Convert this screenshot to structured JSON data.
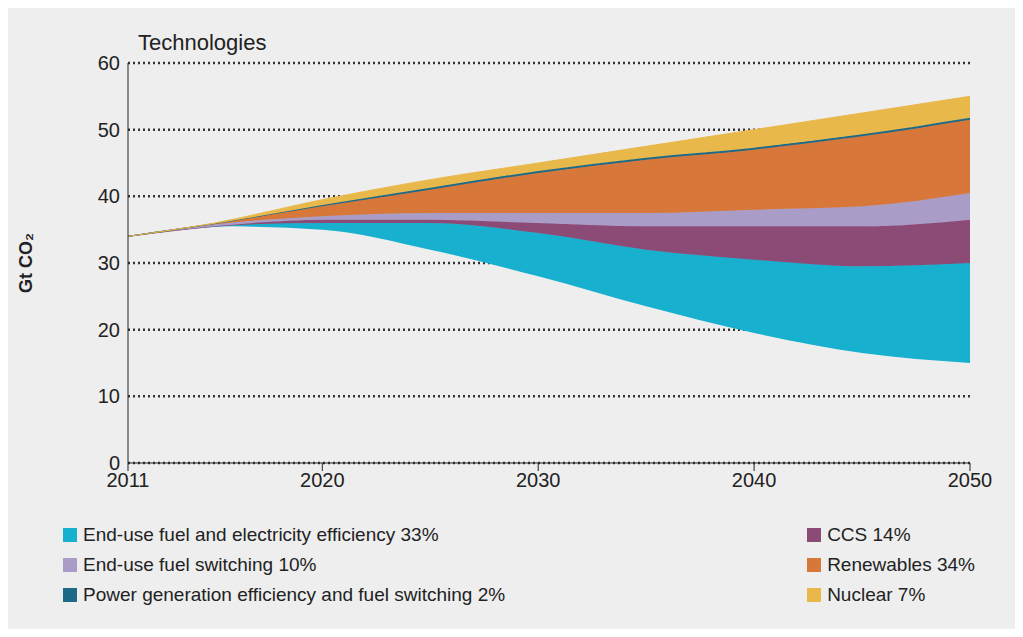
{
  "chart_data": {
    "type": "area",
    "title": "Technologies",
    "y_label": "Gt CO₂",
    "stacked": true,
    "grid": true,
    "legend": "bottom",
    "x": [
      2011,
      2015,
      2020,
      2025,
      2030,
      2035,
      2040,
      2045,
      2050
    ],
    "xlim": [
      2011,
      2050
    ],
    "xticks": [
      2011,
      2020,
      2030,
      2040,
      2050
    ],
    "ylim": [
      0,
      60
    ],
    "yticks": [
      0,
      10,
      20,
      30,
      40,
      50,
      60
    ],
    "baseline": [
      34,
      35.5,
      35,
      32,
      28,
      23.5,
      19.5,
      16.5,
      15
    ],
    "series": [
      {
        "name": "End-use fuel and electricity efficiency 33%",
        "color": "#17b1cf",
        "values": [
          0,
          0,
          1,
          4,
          6.5,
          8.5,
          11,
          13,
          15
        ]
      },
      {
        "name": "CCS 14%",
        "color": "#8c4a76",
        "values": [
          0,
          0,
          0.5,
          0.5,
          1.5,
          3.5,
          5,
          6,
          6.5
        ]
      },
      {
        "name": "End-use fuel switching 10%",
        "color": "#a99dc8",
        "values": [
          0,
          0.3,
          0.5,
          1,
          1.5,
          2,
          2.5,
          3,
          4
        ]
      },
      {
        "name": "Renewables 34%",
        "color": "#d8773a",
        "values": [
          0,
          0.1,
          1.5,
          3.5,
          6,
          8,
          9,
          10.5,
          11
        ]
      },
      {
        "name": "Power generation efficiency and fuel switching 2%",
        "color": "#1d6a86",
        "values": [
          0,
          0,
          0.2,
          0.3,
          0.3,
          0.3,
          0.3,
          0.3,
          0.3
        ]
      },
      {
        "name": "Nuclear 7%",
        "color": "#e8b84a",
        "values": [
          0,
          0.1,
          0.8,
          1.2,
          1.2,
          1.7,
          2.7,
          3.2,
          3.2
        ]
      }
    ]
  }
}
